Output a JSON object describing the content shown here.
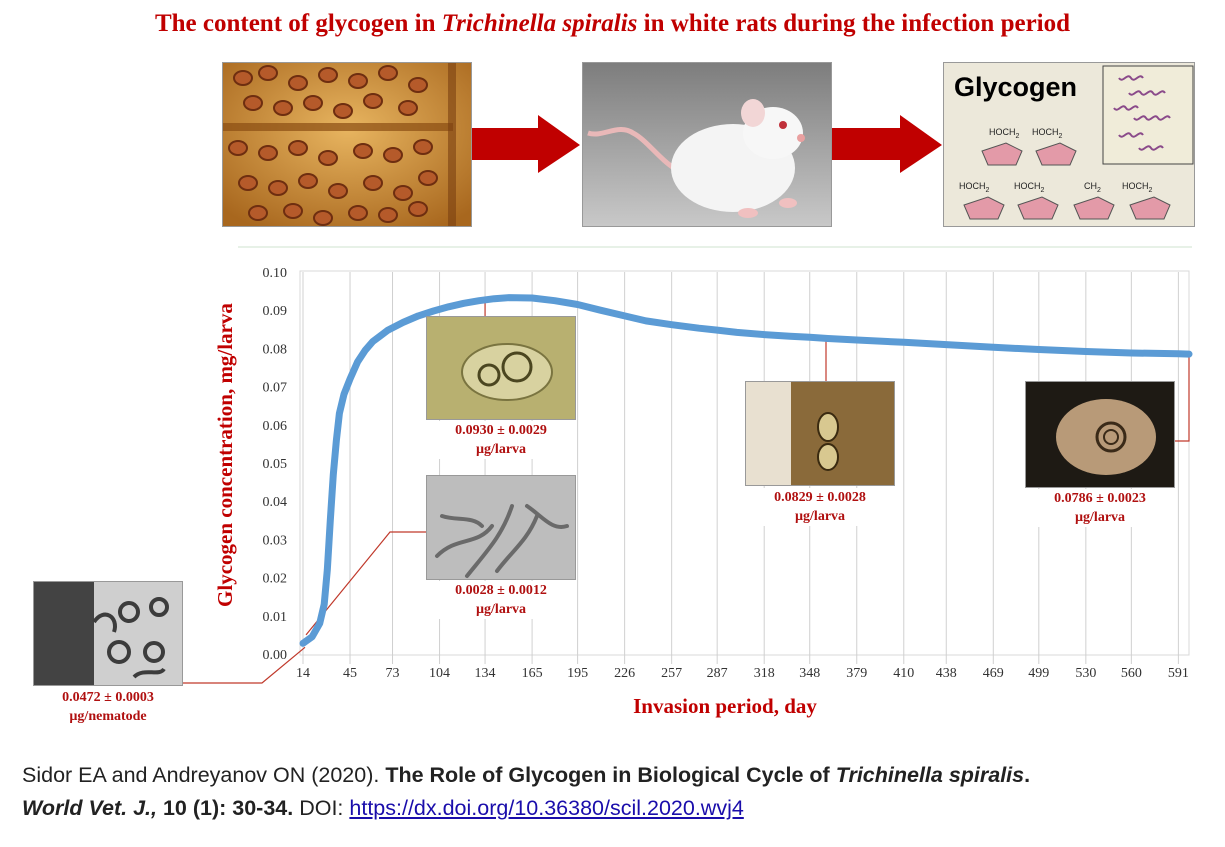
{
  "title": {
    "part1": "The content of glycogen in ",
    "italic": "Trichinella spiralis",
    "part2": " in white rats during the infection period"
  },
  "diagram": {
    "glycogen_label": "Glycogen",
    "hoch2": "HOCH",
    "ch2": "CH",
    "sub2": "2"
  },
  "chart_data": {
    "type": "line",
    "title": "",
    "xlabel": "Invasion period, day",
    "ylabel": "Glycogen concentration, mg/larva",
    "x_ticks": [
      14,
      45,
      73,
      104,
      134,
      165,
      195,
      226,
      257,
      287,
      318,
      348,
      379,
      410,
      438,
      469,
      499,
      530,
      560,
      591
    ],
    "y_ticks": [
      "0.00",
      "0.01",
      "0.02",
      "0.03",
      "0.04",
      "0.05",
      "0.06",
      "0.07",
      "0.08",
      "0.09",
      "0.10"
    ],
    "ylim": [
      0,
      0.1
    ],
    "xlim": [
      14,
      598
    ],
    "grid": "vertical",
    "series": [
      {
        "color": "#5b9bd5",
        "x": [
          14,
          20,
          25,
          28,
          30,
          32,
          34,
          36,
          38,
          41,
          45,
          50,
          55,
          60,
          70,
          80,
          90,
          100,
          110,
          120,
          130,
          140,
          150,
          165,
          180,
          195,
          210,
          226,
          240,
          257,
          275,
          287,
          300,
          318,
          335,
          348,
          360,
          379,
          410,
          438,
          469,
          499,
          530,
          560,
          591,
          598
        ],
        "y": [
          0.0028,
          0.0045,
          0.008,
          0.013,
          0.022,
          0.035,
          0.047,
          0.056,
          0.063,
          0.068,
          0.072,
          0.0765,
          0.0795,
          0.0818,
          0.0848,
          0.0868,
          0.0885,
          0.0898,
          0.0909,
          0.0918,
          0.0925,
          0.093,
          0.0933,
          0.0932,
          0.0925,
          0.0915,
          0.09,
          0.0885,
          0.0872,
          0.0862,
          0.0853,
          0.0848,
          0.0842,
          0.0836,
          0.0832,
          0.0829,
          0.0826,
          0.0822,
          0.0816,
          0.081,
          0.0803,
          0.0797,
          0.0792,
          0.0788,
          0.0786,
          0.0785
        ]
      }
    ],
    "annotations": [
      {
        "value_text": "0.0472 ± 0.0003",
        "unit_text": "µg/nematode"
      },
      {
        "value_text": "0.0028 ± 0.0012",
        "unit_text": "µg/larva"
      },
      {
        "value_text": "0.0930 ± 0.0029",
        "unit_text": "µg/larva"
      },
      {
        "value_text": "0.0829 ± 0.0028",
        "unit_text": "µg/larva"
      },
      {
        "value_text": "0.0786 ± 0.0023",
        "unit_text": "µg/larva"
      }
    ]
  },
  "citation": {
    "authors": "Sidor EA and Andreyanov ON (2020). ",
    "article_title_part": "The Role of Glycogen in Biological Cycle of ",
    "article_title_italic": "Trichinella spiralis",
    "article_title_end": ".",
    "journal": "World Vet. J.,",
    "volume": " 10 (1): 30-34.",
    "doi_label": " DOI: ",
    "doi_url": "https://dx.doi.org/10.36380/scil.2020.wvj4"
  }
}
